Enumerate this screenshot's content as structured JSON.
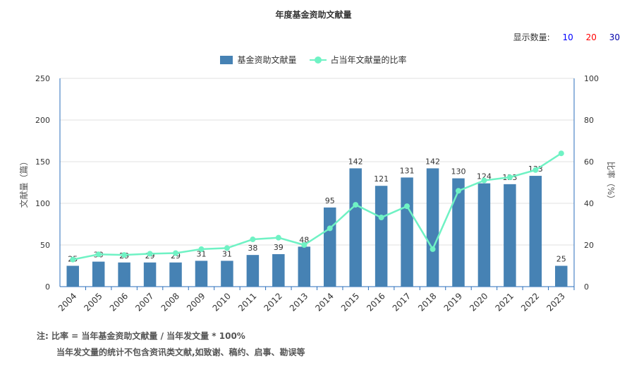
{
  "chart_data": {
    "type": "bar",
    "title": "年度基金资助文献量",
    "categories": [
      "2004",
      "2005",
      "2006",
      "2007",
      "2008",
      "2009",
      "2010",
      "2011",
      "2012",
      "2013",
      "2014",
      "2015",
      "2016",
      "2017",
      "2018",
      "2019",
      "2020",
      "2021",
      "2022",
      "2023"
    ],
    "series": [
      {
        "name": "基金资助文献量",
        "type": "bar",
        "axis": "left",
        "color": "#4682b4",
        "values": [
          25,
          30,
          29,
          29,
          29,
          31,
          31,
          38,
          39,
          48,
          95,
          142,
          121,
          131,
          142,
          130,
          124,
          123,
          133,
          25
        ]
      },
      {
        "name": "占当年文献量的比率",
        "type": "line",
        "axis": "right",
        "color": "#6ff2c4",
        "values": [
          13,
          15.5,
          15.2,
          15.8,
          16.1,
          18,
          18.5,
          22.7,
          23.5,
          20,
          28,
          39.3,
          33.2,
          38.6,
          18,
          46,
          51,
          52.5,
          56,
          64
        ]
      }
    ],
    "y_left": {
      "label": "文献量（篇）",
      "range": [
        0,
        250
      ],
      "ticks": [
        "0",
        "50",
        "100",
        "150",
        "200",
        "250"
      ]
    },
    "y_right": {
      "label": "比率（%）",
      "range": [
        0,
        100
      ],
      "ticks": [
        "0",
        "20",
        "40",
        "60",
        "80",
        "100"
      ]
    },
    "grid": true,
    "legend_position": "top-center"
  },
  "display_count": {
    "label": "显示数量:",
    "options": [
      "10",
      "20",
      "30"
    ],
    "colors": [
      "#0000ff",
      "#ff0000",
      "#0000aa"
    ]
  },
  "notes": {
    "line1": "注:  比率 = 当年基金资助文献量 / 当年发文量 * 100%",
    "line2": "当年发文量的统计不包含资讯类文献,如致谢、稿约、启事、勘误等"
  }
}
